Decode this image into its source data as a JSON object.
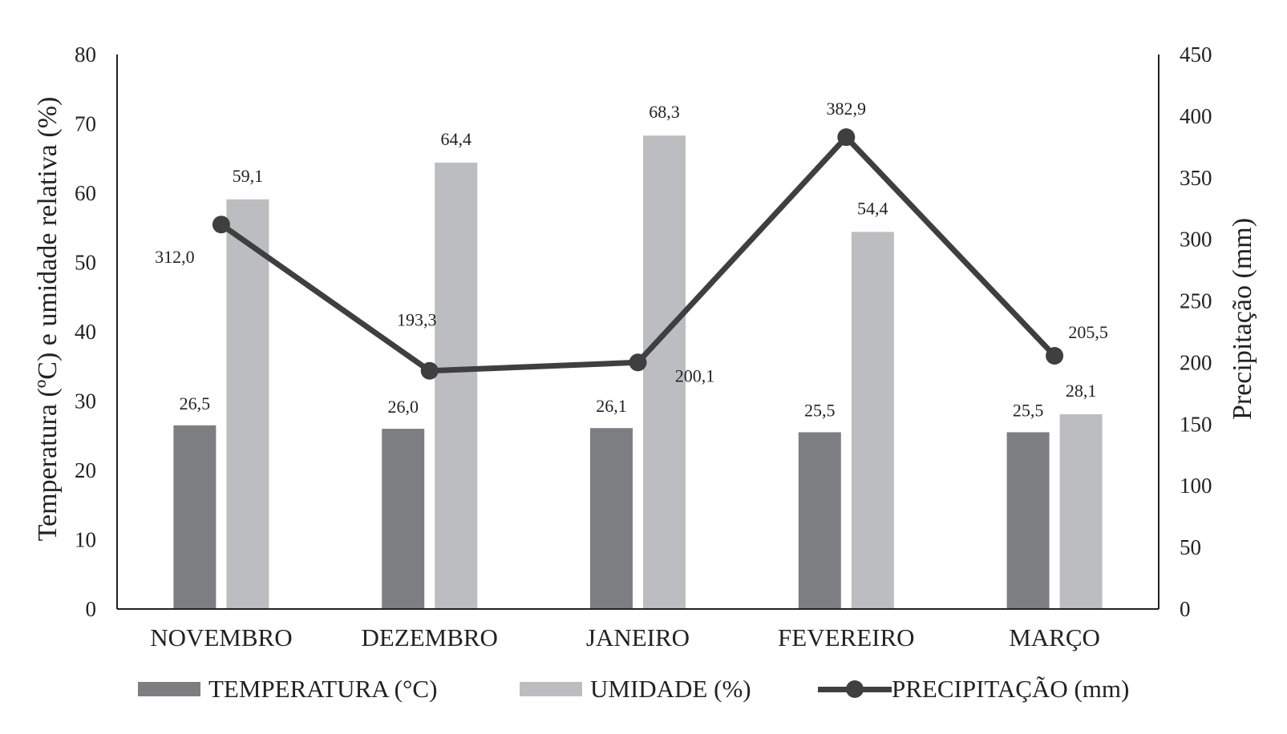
{
  "chart_data": {
    "type": "bar",
    "categories": [
      "NOVEMBRO",
      "DEZEMBRO",
      "JANEIRO",
      "FEVEREIRO",
      "MARÇO"
    ],
    "series": [
      {
        "name": "TEMPERATURA (°C)",
        "kind": "bar",
        "axis": "left",
        "color": "#7d7e82",
        "values": [
          26.5,
          26.0,
          26.1,
          25.5,
          25.5
        ],
        "labels": [
          "26,5",
          "26,0",
          "26,1",
          "25,5",
          "25,5"
        ]
      },
      {
        "name": "UMIDADE (%)",
        "kind": "bar",
        "axis": "left",
        "color": "#bcbdc1",
        "values": [
          59.1,
          64.4,
          68.3,
          54.4,
          28.1
        ],
        "labels": [
          "59,1",
          "64,4",
          "68,3",
          "54,4",
          "28,1"
        ]
      },
      {
        "name": "PRECIPITAÇÃO (mm)",
        "kind": "line",
        "axis": "right",
        "color": "#3f3f3f",
        "values": [
          312.0,
          193.3,
          200.1,
          382.9,
          205.5
        ],
        "labels": [
          "312,0",
          "193,3",
          "200,1",
          "382,9",
          "205,5"
        ]
      }
    ],
    "ylabel_left": "Temperatura (ºC) e umidade relativa (%)",
    "ylabel_right": "Precipitação (mm)",
    "ylim_left": [
      0,
      80
    ],
    "ylim_right": [
      0,
      450
    ],
    "yticks_left": [
      "0",
      "10",
      "20",
      "30",
      "40",
      "50",
      "60",
      "70",
      "80"
    ],
    "yticks_right": [
      "0",
      "50",
      "100",
      "150",
      "200",
      "250",
      "300",
      "350",
      "400",
      "450"
    ],
    "grid": false,
    "legend_position": "bottom"
  },
  "legend": {
    "temperature": "TEMPERATURA (°C)",
    "humidity": "UMIDADE (%)",
    "precipitation": "PRECIPITAÇÃO (mm)"
  }
}
